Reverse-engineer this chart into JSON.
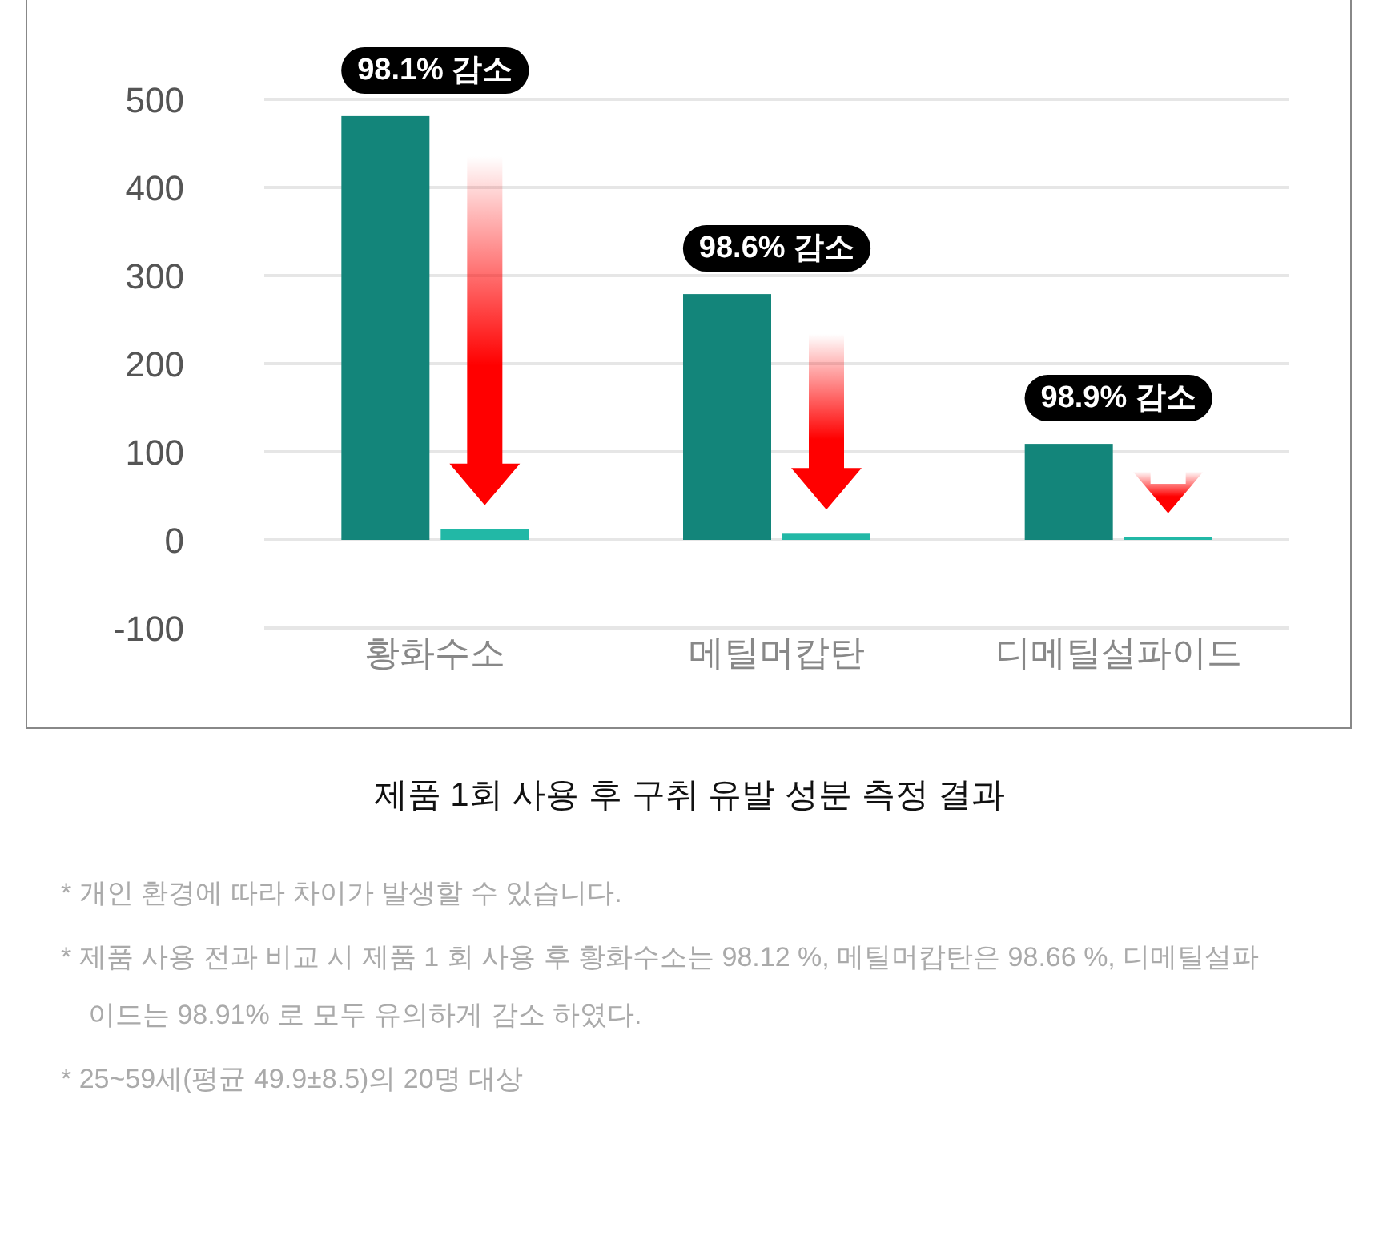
{
  "chart_data": {
    "type": "bar",
    "title": "제품 1회 사용 후 구취 유발 성분 측정 결과",
    "categories": [
      "황화수소",
      "메틸머캅탄",
      "디메틸설파이드"
    ],
    "series": [
      {
        "color": "#13857a",
        "values": [
          481,
          279,
          109
        ]
      },
      {
        "color": "#22b8a6",
        "values": [
          12,
          7,
          3
        ]
      }
    ],
    "ylim": [
      -100,
      500
    ],
    "yticks": [
      -100,
      0,
      100,
      200,
      300,
      400,
      500
    ],
    "grid": "y",
    "annotations": [
      {
        "text": "98.1% 감소",
        "x": "황화수소",
        "y": 481
      },
      {
        "text": "98.6% 감소",
        "x": "메틸머캅탄",
        "y": 279
      },
      {
        "text": "98.9% 감소",
        "x": "디메틸설파이드",
        "y": 109
      },
      "* 개인 환경에 따라 차이가 발생할 수 있습니다.",
      "* 제품 사용 전과 비교 시 제품 1 회 사용 후 황화수소는 98.12 %, 메틸머캅탄은 98.66 %, 디메틸설파이드는 98.91% 로 모두 유의하게 감소 하였다.",
      "* 25~59세(평균 49.9±8.5)의 20명 대상"
    ]
  }
}
